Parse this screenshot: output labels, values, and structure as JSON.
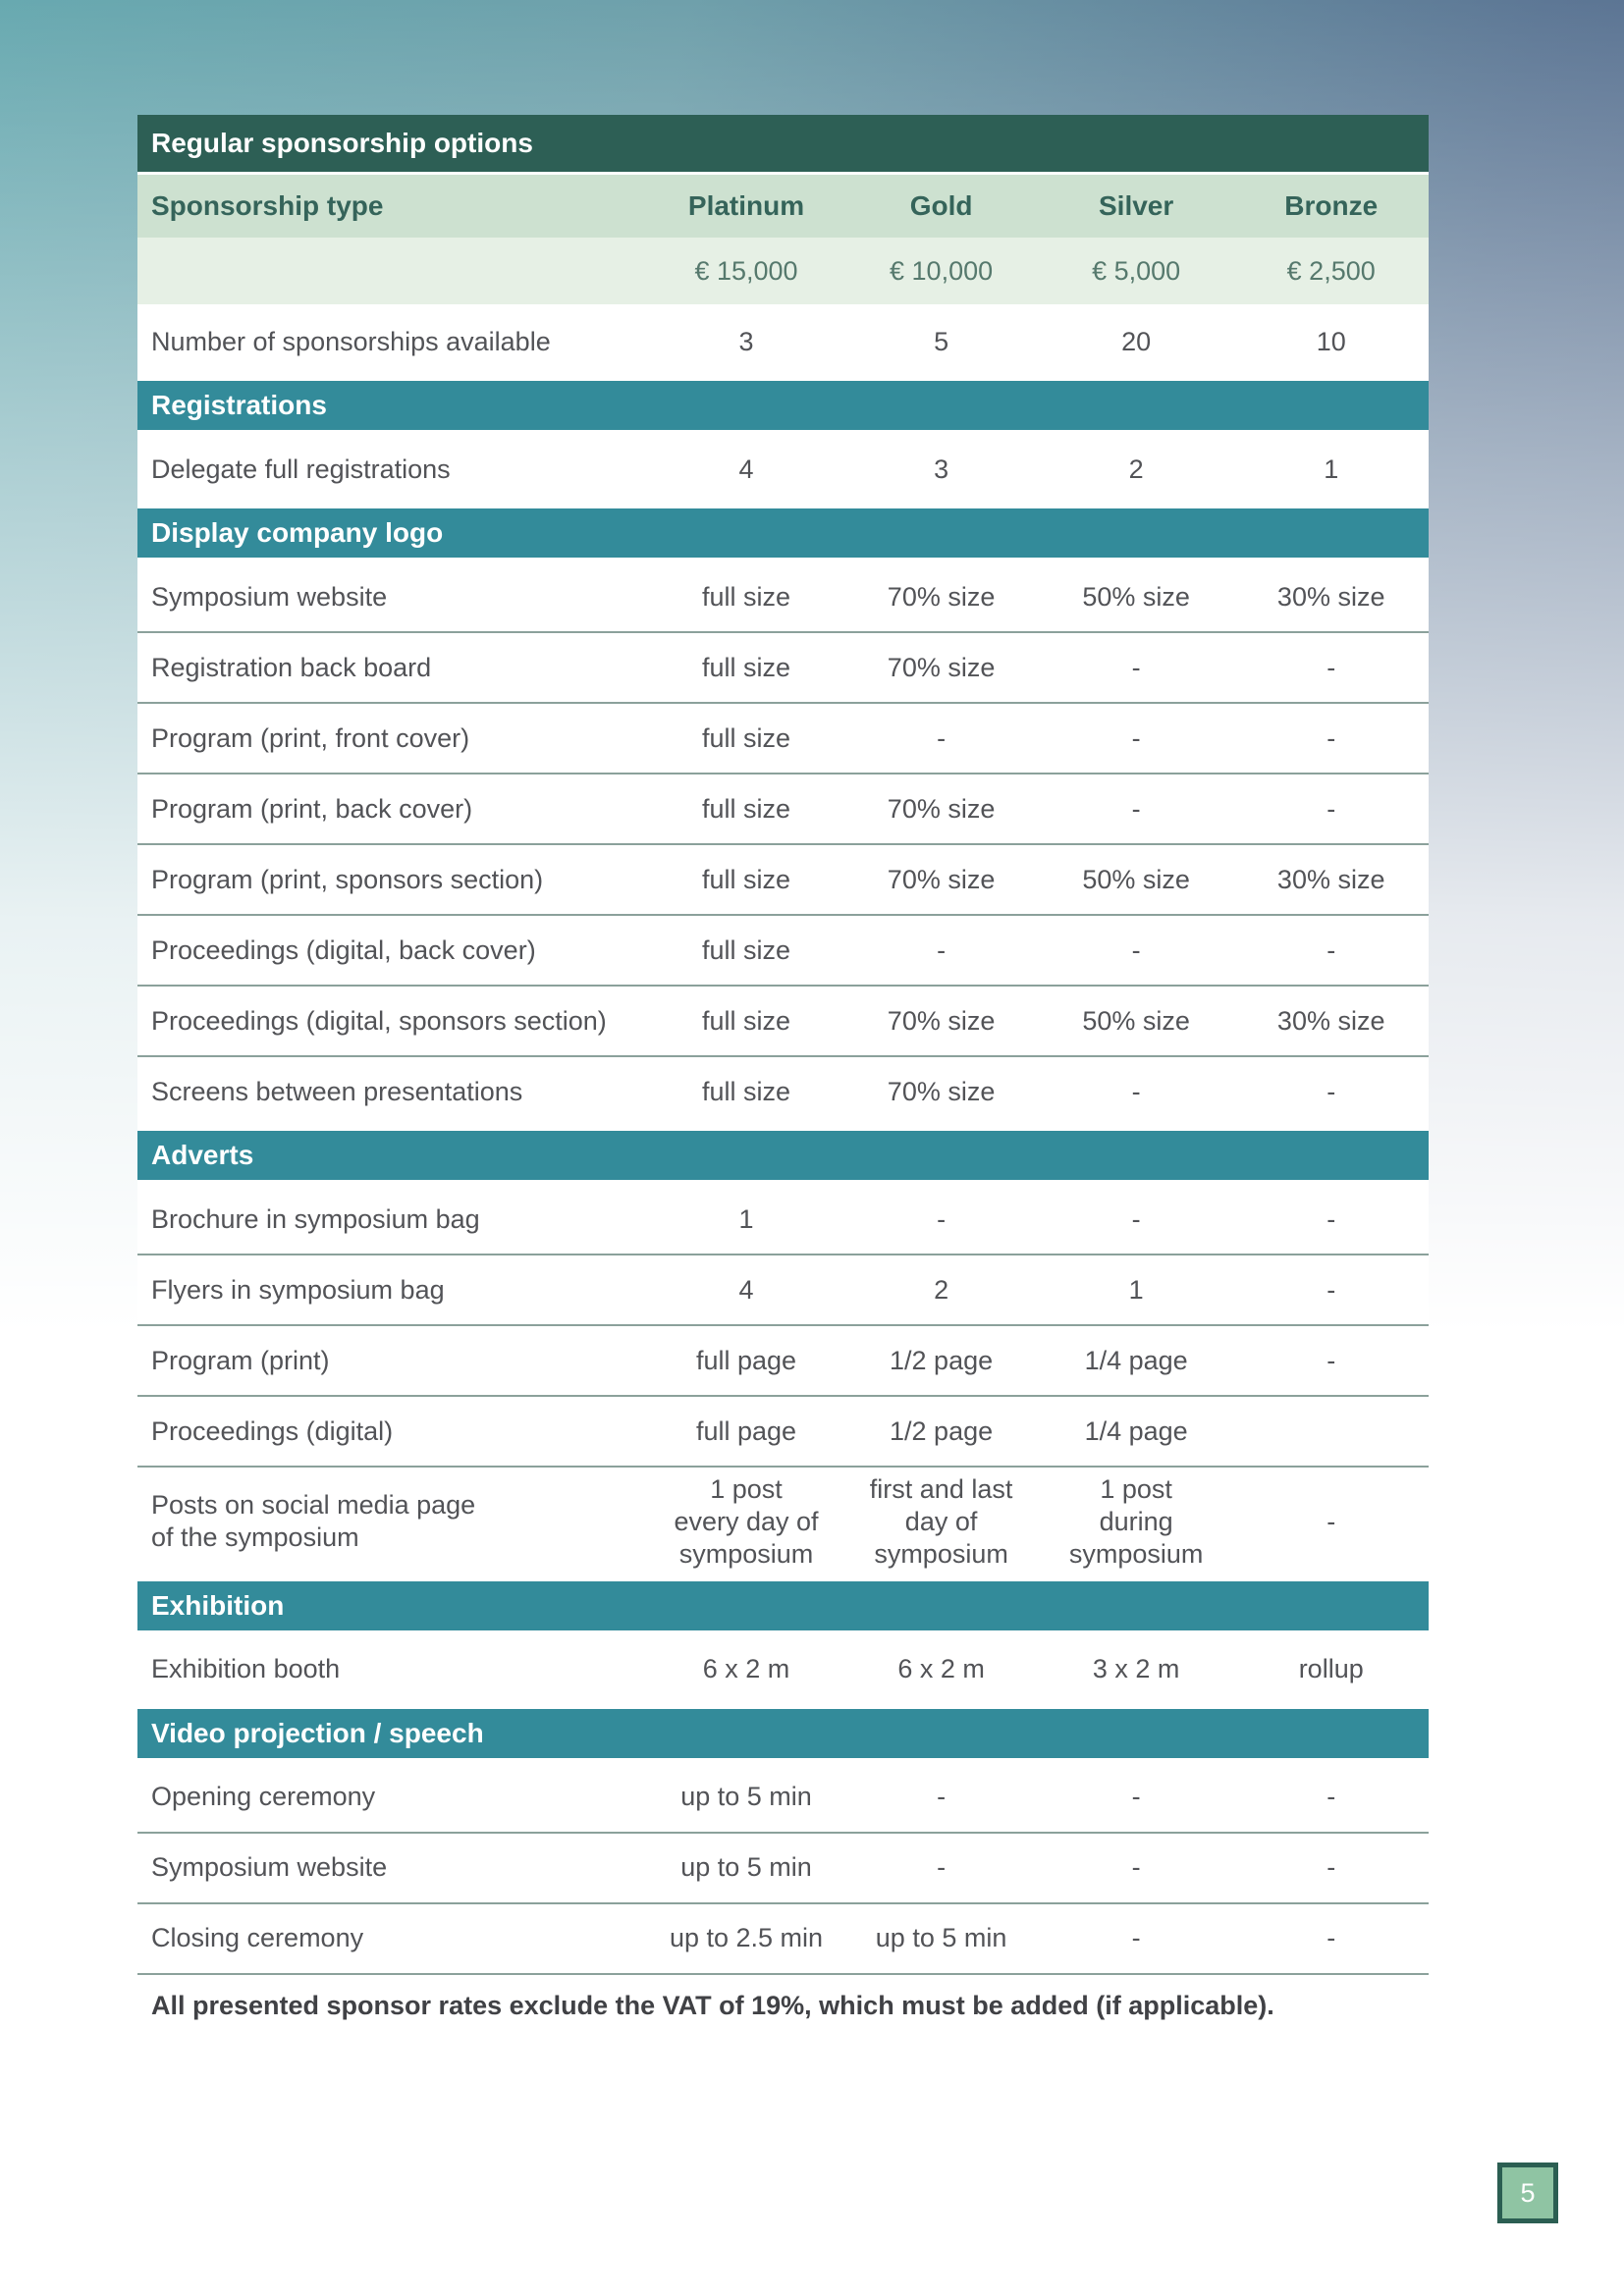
{
  "page": {
    "number": "5"
  },
  "colors": {
    "title_bar": "#2d5f55",
    "section_bar": "#338b9a",
    "header_row_bg": "#cde1d0",
    "price_row_bg": "#e6f0e5",
    "separator": "#8ba19b",
    "badge_bg": "#8fc4a3",
    "badge_border": "#2b5e52"
  },
  "table": {
    "title": "Regular sponsorship options",
    "columns": [
      "Sponsorship type",
      "Platinum",
      "Gold",
      "Silver",
      "Bronze"
    ],
    "prices": [
      "",
      "€ 15,000",
      "€ 10,000",
      "€ 5,000",
      "€ 2,500"
    ],
    "rows": [
      {
        "type": "data",
        "label": "Number of sponsorships available",
        "values": [
          "3",
          "5",
          "20",
          "10"
        ]
      },
      {
        "type": "section",
        "label": "Registrations"
      },
      {
        "type": "data",
        "label": "Delegate full registrations",
        "values": [
          "4",
          "3",
          "2",
          "1"
        ]
      },
      {
        "type": "section",
        "label": "Display company logo"
      },
      {
        "type": "data",
        "label": "Symposium website",
        "values": [
          "full size",
          "70% size",
          "50% size",
          "30% size"
        ]
      },
      {
        "type": "data",
        "label": "Registration back board",
        "values": [
          "full size",
          "70% size",
          "-",
          "-"
        ]
      },
      {
        "type": "data",
        "label": "Program (print, front cover)",
        "values": [
          "full size",
          "-",
          "-",
          "-"
        ]
      },
      {
        "type": "data",
        "label": "Program (print, back cover)",
        "values": [
          "full size",
          "70% size",
          "-",
          "-"
        ]
      },
      {
        "type": "data",
        "label": "Program (print, sponsors section)",
        "values": [
          "full size",
          "70% size",
          "50% size",
          "30% size"
        ]
      },
      {
        "type": "data",
        "label": "Proceedings (digital, back cover)",
        "values": [
          "full size",
          "-",
          "-",
          "-"
        ]
      },
      {
        "type": "data",
        "label": "Proceedings (digital, sponsors section)",
        "values": [
          "full size",
          "70% size",
          "50% size",
          "30% size"
        ]
      },
      {
        "type": "data",
        "label": "Screens between presentations",
        "values": [
          "full size",
          "70% size",
          "-",
          "-"
        ]
      },
      {
        "type": "section",
        "label": "Adverts"
      },
      {
        "type": "data",
        "label": "Brochure in symposium bag",
        "values": [
          "1",
          "-",
          "-",
          "-"
        ]
      },
      {
        "type": "data",
        "label": "Flyers in symposium bag",
        "values": [
          "4",
          "2",
          "1",
          "-"
        ]
      },
      {
        "type": "data",
        "label": "Program (print)",
        "values": [
          "full page",
          "1/2 page",
          "1/4 page",
          "-"
        ]
      },
      {
        "type": "data",
        "label": "Proceedings (digital)",
        "values": [
          "full page",
          "1/2 page",
          "1/4 page",
          ""
        ]
      },
      {
        "type": "data",
        "label": "Posts on social media page\nof the symposium",
        "values": [
          "1 post\nevery day of\nsymposium",
          "first and last\nday of\nsymposium",
          "1 post\nduring\nsymposium",
          "-"
        ]
      },
      {
        "type": "section",
        "label": "Exhibition"
      },
      {
        "type": "data",
        "label": "Exhibition booth",
        "values": [
          "6 x 2 m",
          "6 x 2 m",
          "3 x 2 m",
          "rollup"
        ]
      },
      {
        "type": "section",
        "label": "Video projection / speech"
      },
      {
        "type": "data",
        "label": "Opening ceremony",
        "values": [
          "up to 5 min",
          "-",
          "-",
          "-"
        ]
      },
      {
        "type": "data",
        "label": "Symposium website",
        "values": [
          "up to 5 min",
          "-",
          "-",
          "-"
        ]
      },
      {
        "type": "data",
        "label": "Closing ceremony",
        "values": [
          "up to 2.5 min",
          "up to 5 min",
          "-",
          "-"
        ]
      }
    ],
    "footnote": "All presented sponsor rates exclude the VAT of 19%, which must be added (if applicable)."
  }
}
